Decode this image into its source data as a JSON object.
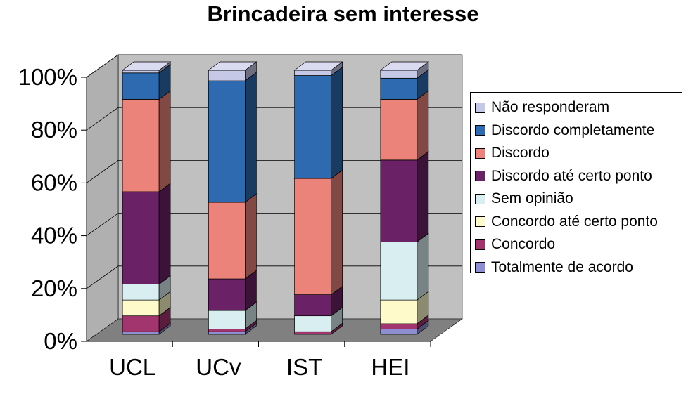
{
  "chart_data": {
    "type": "bar",
    "stacked": true,
    "three_d": true,
    "title": "Brincadeira sem interesse",
    "categories": [
      "UCL",
      "UCv",
      "IST",
      "HEI"
    ],
    "ylim": [
      0,
      100
    ],
    "yticks": [
      "0%",
      "20%",
      "40%",
      "60%",
      "80%",
      "100%"
    ],
    "grid": true,
    "legend_position": "right",
    "series": [
      {
        "name": "Totalmente de acordo",
        "color": "#8E8ED2",
        "values": [
          1,
          1,
          0,
          2
        ]
      },
      {
        "name": "Concordo",
        "color": "#A3356E",
        "values": [
          6,
          1,
          1,
          2
        ]
      },
      {
        "name": "Concordo até certo ponto",
        "color": "#FEFACA",
        "values": [
          6,
          0,
          0,
          9
        ]
      },
      {
        "name": "Sem opinião",
        "color": "#D8EEF0",
        "values": [
          6,
          7,
          6,
          22
        ]
      },
      {
        "name": "Discordo até certo ponto",
        "color": "#6B2166",
        "values": [
          35,
          12,
          8,
          31
        ]
      },
      {
        "name": "Discordo",
        "color": "#EB837B",
        "values": [
          35,
          29,
          44,
          23
        ]
      },
      {
        "name": "Discordo completamente",
        "color": "#2E6AB0",
        "values": [
          10,
          46,
          39,
          8
        ]
      },
      {
        "name": "Não responderam",
        "color": "#C6C8E8",
        "values": [
          1,
          4,
          2,
          3
        ]
      }
    ]
  }
}
